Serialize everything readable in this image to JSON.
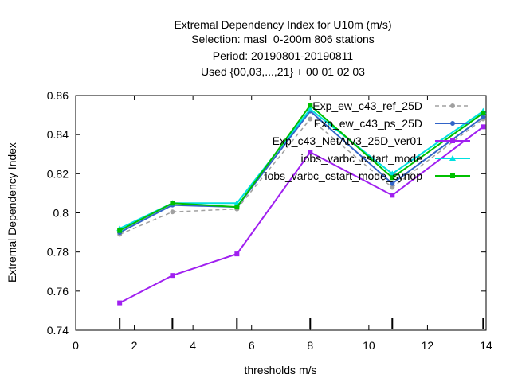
{
  "chart_data": {
    "type": "line",
    "title_lines": [
      "Extremal Dependency Index  for U10m (m/s)",
      "Selection: masl_0-200m    806 stations",
      "Period: 20190801-20190811",
      "Used {00,03,...,21} + 00 01 02 03"
    ],
    "xlabel": "thresholds m/s",
    "ylabel": "Extremal Dependency Index",
    "xlim": [
      0,
      14
    ],
    "ylim": [
      0.74,
      0.86
    ],
    "xticks": [
      "0",
      "2",
      "4",
      "6",
      "8",
      "10",
      "12",
      "14"
    ],
    "yticks": [
      "0.74",
      "0.76",
      "0.78",
      "0.8",
      "0.82",
      "0.84",
      "0.86"
    ],
    "x": [
      1.5,
      3.3,
      5.5,
      8.0,
      10.8,
      13.9
    ],
    "grid": false,
    "legend_position": "top-right",
    "series": [
      {
        "name": "Exp_ew_c43_ref_25D",
        "color": "#a0a0a0",
        "dash": "dashed",
        "marker": "circle",
        "values": [
          0.789,
          0.8005,
          0.802,
          0.848,
          0.813,
          0.848
        ]
      },
      {
        "name": "Exp_ew_c43_ps_25D",
        "color": "#3264c8",
        "dash": "solid",
        "marker": "circle",
        "values": [
          0.79,
          0.804,
          0.803,
          0.852,
          0.815,
          0.849
        ]
      },
      {
        "name": "Exp_c43_NetAtv3_25D_ver01",
        "color": "#a020f0",
        "dash": "solid",
        "marker": "square",
        "values": [
          0.754,
          0.768,
          0.779,
          0.831,
          0.809,
          0.844
        ]
      },
      {
        "name": "iobs_varbc_cstart_mode",
        "color": "#00e0e0",
        "dash": "solid",
        "marker": "triangle",
        "values": [
          0.792,
          0.805,
          0.805,
          0.853,
          0.82,
          0.852
        ]
      },
      {
        "name": "iobs_varbc_cstart_mode_synop",
        "color": "#00c000",
        "dash": "solid",
        "marker": "square",
        "values": [
          0.791,
          0.805,
          0.803,
          0.855,
          0.818,
          0.851
        ]
      }
    ]
  }
}
